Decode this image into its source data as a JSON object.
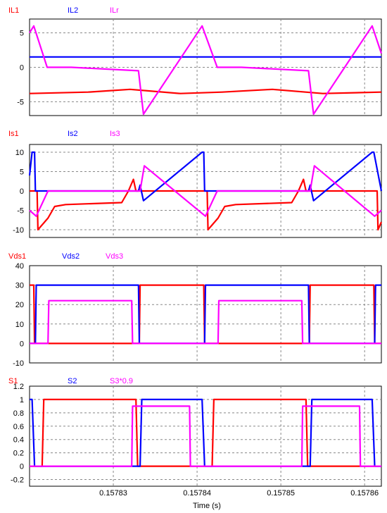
{
  "chart_data": {
    "type": "line",
    "x_axis": {
      "label": "Time (s)",
      "range": [
        0.15782,
        0.157862
      ],
      "ticks": [
        0.15783,
        0.15784,
        0.15785,
        0.15786
      ],
      "tick_labels": [
        "0.15783",
        "0.15784",
        "0.15785",
        "0.15786"
      ]
    },
    "grid": true,
    "panels": [
      {
        "ylim": [
          -7,
          7
        ],
        "yticks": [
          5,
          0,
          -5
        ],
        "ytick_labels": [
          "5",
          "0",
          "-5"
        ],
        "series": [
          {
            "name": "IL1",
            "color": "#ff0000",
            "x": [
              0.15782,
              0.157827,
              0.157832,
              0.157838,
              0.157843,
              0.157849,
              0.157855,
              0.157862
            ],
            "y": [
              -3.8,
              -3.6,
              -3.2,
              -3.8,
              -3.6,
              -3.2,
              -3.8,
              -3.6
            ]
          },
          {
            "name": "IL2",
            "color": "#0000ff",
            "x": [
              0.15782,
              0.157862
            ],
            "y": [
              1.5,
              1.5
            ]
          },
          {
            "name": "ILr",
            "color": "#ff00ff",
            "x": [
              0.15782,
              0.1578205,
              0.1578221,
              0.157825,
              0.157833,
              0.1578336,
              0.1578406,
              0.1578424,
              0.1578453,
              0.1578533,
              0.1578539,
              0.1578609,
              0.157862
            ],
            "y": [
              5,
              6,
              0,
              0,
              -0.5,
              -6.8,
              6,
              0,
              0,
              -0.5,
              -6.8,
              6,
              2
            ]
          }
        ]
      },
      {
        "ylim": [
          -12,
          12
        ],
        "yticks": [
          10,
          5,
          0,
          -5,
          -10
        ],
        "ytick_labels": [
          "10",
          "5",
          "0",
          "-5",
          "-10"
        ],
        "series": [
          {
            "name": "Is1",
            "color": "#ff0000",
            "x": [
              0.15782,
              0.1578209,
              0.157821,
              0.1578222,
              0.157823,
              0.1578243,
              0.157831,
              0.1578318,
              0.1578324,
              0.1578327,
              0.1578333,
              0.1578405,
              0.1578412,
              0.1578413,
              0.1578425,
              0.1578433,
              0.1578446,
              0.1578513,
              0.1578521,
              0.1578527,
              0.157853,
              0.1578536,
              0.1578608,
              0.1578615,
              0.1578616,
              0.157862
            ],
            "y": [
              0,
              0,
              -10,
              -7,
              -4,
              -3.5,
              -3,
              0,
              3,
              0,
              0,
              0,
              0,
              -10,
              -7,
              -4,
              -3.5,
              -3,
              0,
              3,
              0,
              0,
              0,
              0,
              -10,
              -8
            ]
          },
          {
            "name": "Is2",
            "color": "#0000ff",
            "x": [
              0.15782,
              0.1578203,
              0.1578206,
              0.1578207,
              0.157833,
              0.1578332,
              0.1578336,
              0.1578406,
              0.1578408,
              0.1578409,
              0.1578533,
              0.1578535,
              0.1578539,
              0.1578609,
              0.1578611,
              0.157862
            ],
            "y": [
              4,
              10,
              10,
              0,
              0,
              1.5,
              -2.5,
              10,
              10,
              0,
              0,
              1.5,
              -2.5,
              10,
              10,
              0
            ]
          },
          {
            "name": "Is3",
            "color": "#ff00ff",
            "x": [
              0.15782,
              0.1578208,
              0.1578222,
              0.1578332,
              0.1578337,
              0.157841,
              0.1578424,
              0.1578535,
              0.157854,
              0.1578612,
              0.157862
            ],
            "y": [
              -5,
              -6.5,
              0,
              0,
              6.5,
              -6.5,
              0,
              0,
              6.5,
              -6.5,
              -5
            ]
          }
        ]
      },
      {
        "ylim": [
          -10,
          40
        ],
        "yticks": [
          40,
          30,
          20,
          10,
          0,
          -10
        ],
        "ytick_labels": [
          "40",
          "30",
          "20",
          "10",
          "0",
          "-10"
        ],
        "series": [
          {
            "name": "Vds1",
            "color": "#ff0000",
            "x": [
              0.15782,
              0.1578205,
              0.1578206,
              0.1578331,
              0.1578332,
              0.1578408,
              0.1578409,
              0.1578534,
              0.1578535,
              0.1578611,
              0.1578612,
              0.157862
            ],
            "y": [
              30,
              30,
              0,
              0,
              30,
              30,
              0,
              0,
              30,
              30,
              0,
              0
            ]
          },
          {
            "name": "Vds2",
            "color": "#0000ff",
            "x": [
              0.15782,
              0.1578207,
              0.1578208,
              0.157833,
              0.1578331,
              0.1578409,
              0.157841,
              0.1578533,
              0.1578534,
              0.1578612,
              0.1578613,
              0.157862
            ],
            "y": [
              0,
              0,
              30,
              30,
              0,
              0,
              30,
              30,
              0,
              0,
              30,
              30
            ]
          },
          {
            "name": "Vds3",
            "color": "#ff00ff",
            "x": [
              0.15782,
              0.1578222,
              0.1578223,
              0.1578322,
              0.1578323,
              0.1578425,
              0.1578426,
              0.1578525,
              0.1578526,
              0.157862
            ],
            "y": [
              0,
              0,
              22,
              22,
              0,
              0,
              22,
              22,
              0,
              0
            ]
          }
        ]
      },
      {
        "ylim": [
          -0.3,
          1.2
        ],
        "yticks": [
          1.2,
          1,
          0.8,
          0.6,
          0.4,
          0.2,
          0,
          -0.2
        ],
        "ytick_labels": [
          "1.2",
          "1",
          "0.8",
          "0.6",
          "0.4",
          "0.2",
          "0",
          "-0.2"
        ],
        "series": [
          {
            "name": "S1",
            "color": "#ff0000",
            "x": [
              0.15782,
              0.1578215,
              0.1578217,
              0.1578327,
              0.1578329,
              0.1578418,
              0.157842,
              0.157853,
              0.1578532,
              0.157862
            ],
            "y": [
              0,
              0,
              1,
              1,
              0,
              0,
              1,
              1,
              0,
              0
            ]
          },
          {
            "name": "S2",
            "color": "#0000ff",
            "x": [
              0.15782,
              0.1578203,
              0.1578206,
              0.1578332,
              0.1578334,
              0.1578406,
              0.1578409,
              0.1578535,
              0.1578537,
              0.1578609,
              0.1578612,
              0.157862
            ],
            "y": [
              1,
              1,
              0,
              0,
              1,
              1,
              0,
              0,
              1,
              1,
              0,
              0
            ]
          },
          {
            "name": "S3*0.9",
            "color": "#ff00ff",
            "x": [
              0.15782,
              0.1578322,
              0.1578323,
              0.1578391,
              0.1578392,
              0.1578525,
              0.1578526,
              0.1578594,
              0.1578595,
              0.157862
            ],
            "y": [
              0,
              0,
              0.9,
              0.9,
              0,
              0,
              0.9,
              0.9,
              0,
              0
            ]
          }
        ]
      }
    ]
  }
}
